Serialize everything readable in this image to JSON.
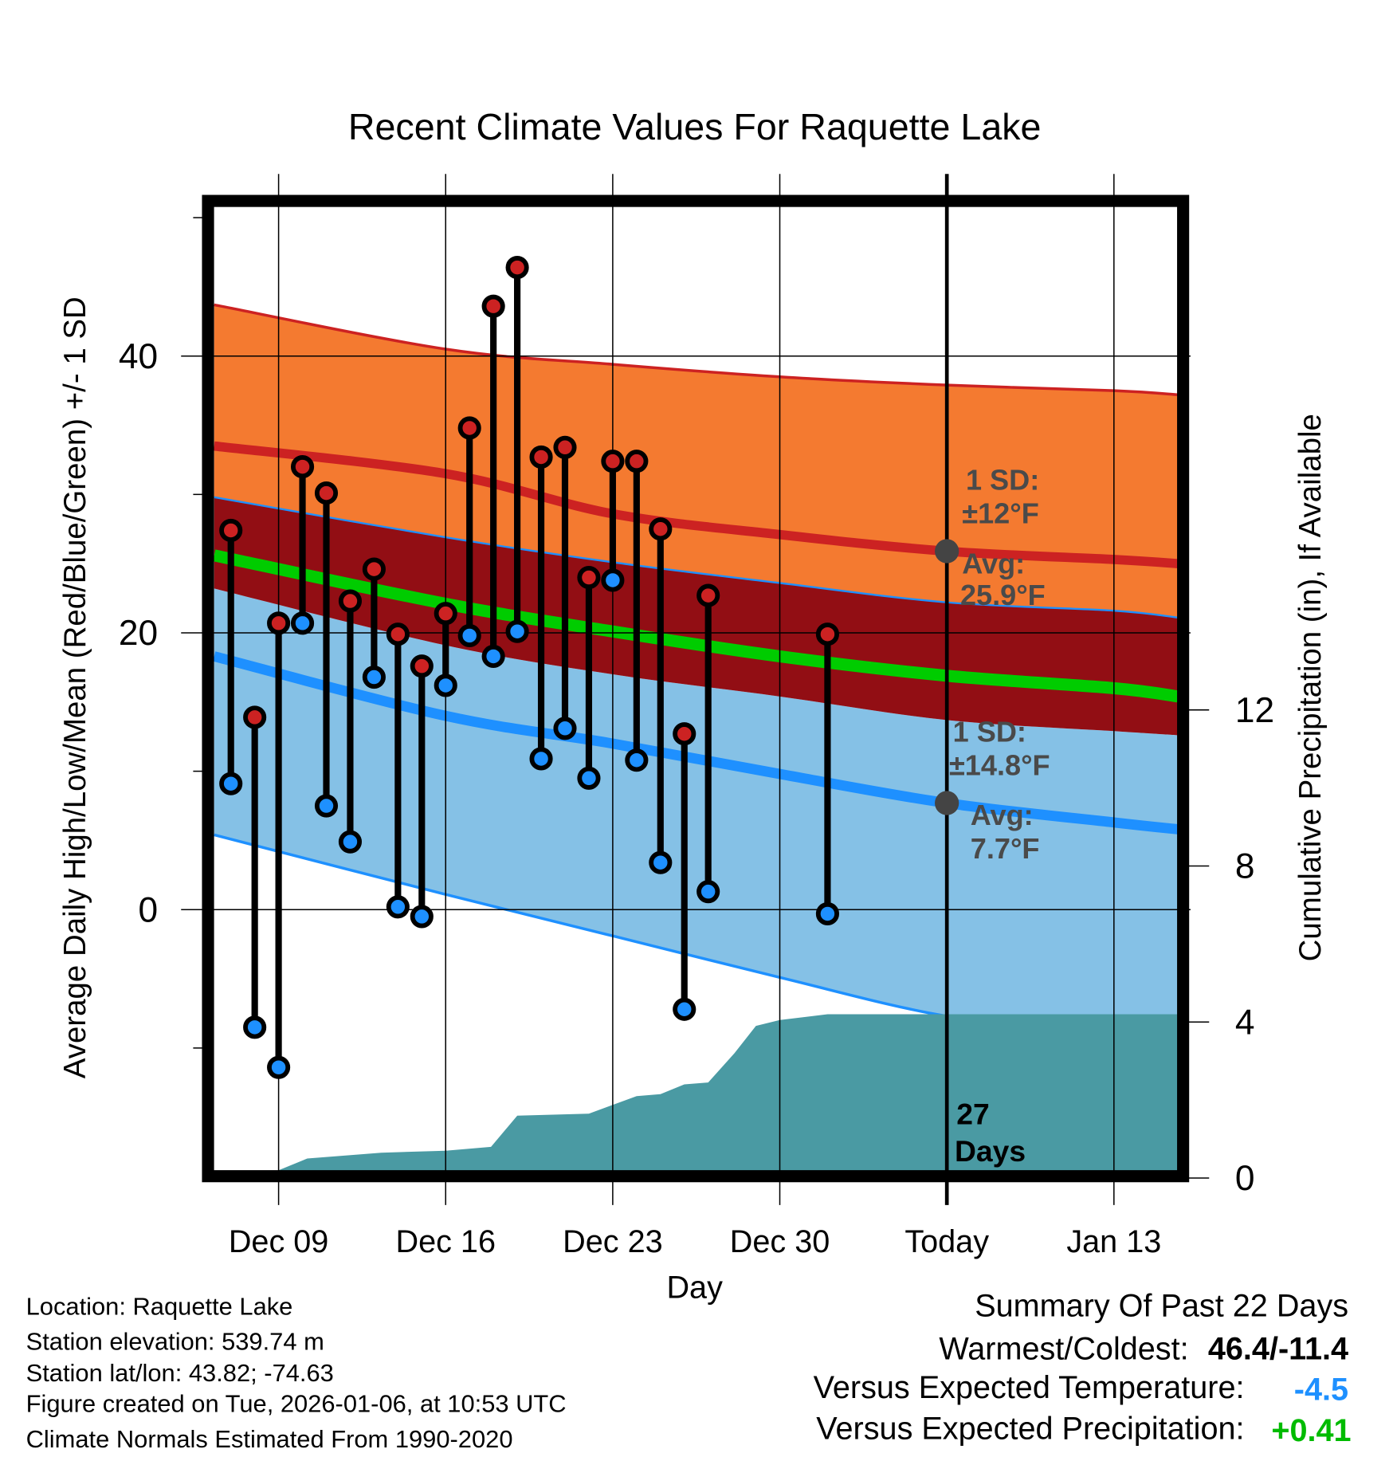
{
  "chart_data": {
    "type": "line",
    "title": "Recent Climate Values For Raquette Lake",
    "xlabel": "Day",
    "ylabel": "Average Daily High/Low/Mean (Red/Blue/Green) +/- 1 SD",
    "ylabel_right": "Cumulative Precipitation (in), If Available",
    "x_unit": "days since Dec 09",
    "xlim": [
      -2.7,
      37.7
    ],
    "ylim": [
      -18.9,
      50.8
    ],
    "ylim_right": [
      0,
      16.4
    ],
    "x_ticks": [
      {
        "x": 0,
        "label": "Dec 09"
      },
      {
        "x": 7,
        "label": "Dec 16"
      },
      {
        "x": 14,
        "label": "Dec 23"
      },
      {
        "x": 21,
        "label": "Dec 30"
      },
      {
        "x": 28,
        "label": "Today"
      },
      {
        "x": 35,
        "label": "Jan 13"
      }
    ],
    "y_ticks": [
      {
        "v": 0,
        "label": "0"
      },
      {
        "v": 20,
        "label": "20"
      },
      {
        "v": 40,
        "label": "40"
      }
    ],
    "y_minor_ticks": [
      -10,
      10,
      30,
      50
    ],
    "y_right_ticks": [
      {
        "v": 0,
        "label": "0"
      },
      {
        "v": 4,
        "label": "4"
      },
      {
        "v": 8,
        "label": "8"
      },
      {
        "v": 12,
        "label": "12"
      }
    ],
    "grid": true,
    "normals_x": [
      -2.7,
      7,
      14,
      21,
      28,
      35,
      37.7
    ],
    "normals": {
      "high_plus_sd": [
        43.7,
        40.5,
        39.4,
        38.5,
        37.9,
        37.5,
        37.2
      ],
      "high_mean": [
        33.5,
        31.5,
        28.6,
        27.1,
        25.9,
        25.3,
        25.0
      ],
      "low_plus_sd": [
        29.8,
        26.9,
        25.1,
        23.6,
        22.2,
        21.6,
        21.1
      ],
      "mean": [
        25.6,
        22.1,
        20.1,
        18.3,
        16.9,
        16.0,
        15.4
      ],
      "high_minus_sd": [
        23.2,
        19.1,
        17.0,
        15.4,
        13.7,
        12.9,
        12.6
      ],
      "low_mean": [
        18.3,
        14.0,
        12.0,
        9.8,
        7.7,
        6.3,
        5.8
      ],
      "low_minus_sd": [
        5.4,
        1.1,
        -1.9,
        -4.9,
        -7.7,
        -9.0,
        -9.5
      ]
    },
    "observations": {
      "x": [
        -2,
        -1,
        0,
        1,
        2,
        3,
        4,
        5,
        6,
        7,
        8,
        9,
        10,
        11,
        12,
        13,
        14,
        15,
        16,
        17,
        18,
        23
      ],
      "high": [
        27.4,
        13.9,
        20.7,
        32.0,
        30.1,
        22.3,
        24.6,
        19.9,
        17.6,
        21.4,
        34.8,
        43.6,
        46.4,
        32.7,
        33.4,
        24.0,
        32.4,
        32.4,
        27.5,
        12.7,
        22.7,
        19.9
      ],
      "low": [
        9.1,
        -8.5,
        -11.4,
        20.7,
        7.5,
        4.9,
        16.8,
        0.2,
        -0.5,
        16.2,
        19.8,
        18.3,
        20.1,
        10.9,
        13.1,
        9.5,
        23.8,
        10.8,
        3.4,
        -7.2,
        1.3,
        -0.3
      ]
    },
    "precip_cumulative": {
      "x": [
        0,
        1.2,
        4.3,
        7,
        8.9,
        10,
        13,
        15,
        16,
        17,
        18,
        19.1,
        20,
        21,
        23,
        37.7
      ],
      "values": [
        0.2,
        0.5,
        0.65,
        0.7,
        0.8,
        1.6,
        1.65,
        2.1,
        2.15,
        2.4,
        2.45,
        3.2,
        3.9,
        4.05,
        4.2,
        4.2
      ]
    },
    "annotations": {
      "high_sd_label": "1 SD:",
      "high_sd_value": "±12°F",
      "high_avg_label": "Avg:",
      "high_avg_value": "25.9°F",
      "low_sd_label": "1 SD:",
      "low_sd_value": "±14.8°F",
      "low_avg_label": "Avg:",
      "low_avg_value": "7.7°F",
      "days_count": "27",
      "days_label": "Days"
    },
    "colors": {
      "orange_band": "#f47a30",
      "darkred_band": "#920e14",
      "lightblue_band": "#85c1e6",
      "high_line": "#cc2222",
      "low_line": "#1e90ff",
      "mean_line": "#00cc00",
      "precip": "#4a9aa3"
    }
  },
  "footer": {
    "location": "Location: Raquette Lake",
    "elevation": "Station elevation: 539.74 m",
    "latlon": "Station lat/lon: 43.82; -74.63",
    "created": "Figure created on Tue, 2026-01-06, at 10:53 UTC",
    "normals": "Climate Normals Estimated From 1990-2020"
  },
  "summary": {
    "title": "Summary Of Past 22 Days",
    "warmest_coldest_label": "Warmest/Coldest:",
    "warmest_coldest_value": "46.4/-11.4",
    "temp_label": "Versus Expected Temperature:",
    "temp_value": "-4.5",
    "precip_label": "Versus Expected Precipitation:",
    "precip_value": "+0.41",
    "temp_color": "#1e90ff",
    "precip_color": "#00bb00"
  }
}
